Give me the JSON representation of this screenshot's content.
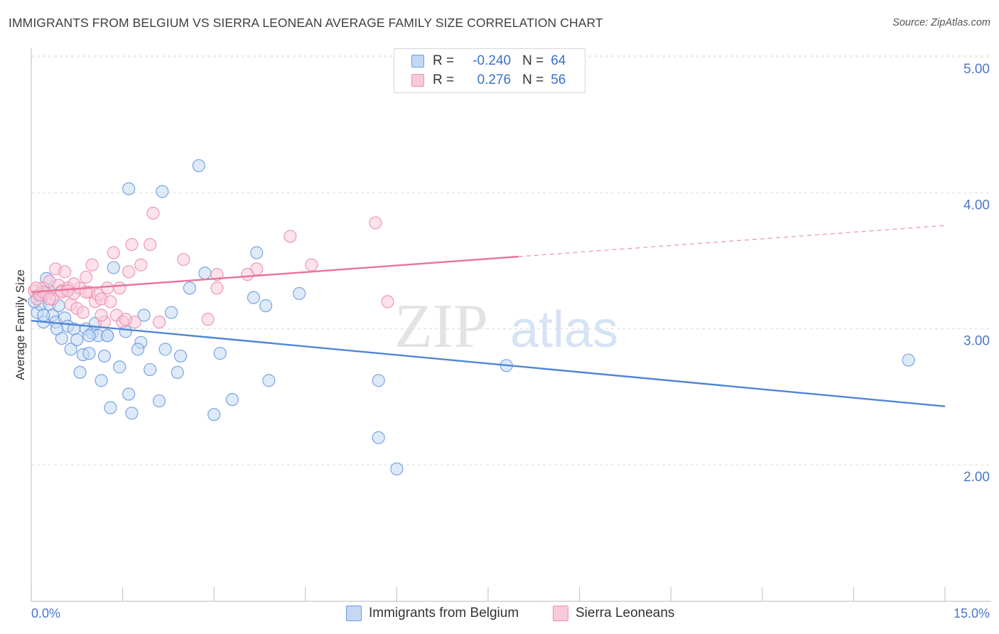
{
  "title": "IMMIGRANTS FROM BELGIUM VS SIERRA LEONEAN AVERAGE FAMILY SIZE CORRELATION CHART",
  "source": "Source: ZipAtlas.com",
  "watermark": {
    "zip": "ZIP",
    "atlas": "atlas"
  },
  "legend": {
    "rows": [
      {
        "r_label": "R =",
        "r_value": "-0.240",
        "n_label": "N =",
        "n_value": "64"
      },
      {
        "r_label": "R =",
        "r_value": "0.276",
        "n_label": "N =",
        "n_value": "56"
      }
    ]
  },
  "colors": {
    "blue": "#4f86d6",
    "pink": "#e8739b",
    "blue_fill": "#c4d8f3",
    "pink_fill": "#f9cad9"
  },
  "chart_data": {
    "type": "scatter",
    "title": "IMMIGRANTS FROM BELGIUM VS SIERRA LEONEAN AVERAGE FAMILY SIZE CORRELATION CHART",
    "xlabel": "",
    "ylabel": "Average Family Size",
    "xlim": [
      0,
      15
    ],
    "ylim": [
      1.0,
      5.15
    ],
    "x_tick_labels": {
      "min": "0.0%",
      "max": "15.0%"
    },
    "y_ticks": [
      {
        "value": 2.0,
        "label": "2.00"
      },
      {
        "value": 3.0,
        "label": "3.00"
      },
      {
        "value": 4.0,
        "label": "4.00"
      },
      {
        "value": 5.0,
        "label": "5.00"
      }
    ],
    "legend_position": "top-center",
    "grid": true,
    "series": [
      {
        "name": "Immigrants from Belgium",
        "color": "#4f86d6",
        "trend": {
          "x": [
            0,
            15
          ],
          "y": [
            3.06,
            2.43
          ],
          "dashed_from": null
        },
        "points": [
          [
            0.1,
            3.12
          ],
          [
            0.15,
            3.18
          ],
          [
            0.2,
            3.05
          ],
          [
            0.25,
            3.37
          ],
          [
            0.3,
            3.28
          ],
          [
            0.3,
            3.18
          ],
          [
            0.35,
            3.1
          ],
          [
            0.4,
            3.05
          ],
          [
            0.45,
            3.17
          ],
          [
            0.5,
            2.93
          ],
          [
            0.55,
            3.08
          ],
          [
            0.6,
            3.02
          ],
          [
            0.65,
            2.85
          ],
          [
            0.7,
            3.0
          ],
          [
            0.75,
            2.92
          ],
          [
            0.8,
            2.68
          ],
          [
            0.85,
            2.81
          ],
          [
            0.9,
            3.0
          ],
          [
            0.95,
            2.82
          ],
          [
            1.0,
            2.97
          ],
          [
            1.05,
            3.04
          ],
          [
            1.1,
            2.95
          ],
          [
            1.15,
            2.62
          ],
          [
            1.2,
            2.8
          ],
          [
            1.25,
            2.95
          ],
          [
            1.3,
            2.42
          ],
          [
            1.35,
            3.45
          ],
          [
            1.45,
            2.72
          ],
          [
            1.55,
            2.98
          ],
          [
            1.6,
            2.52
          ],
          [
            1.65,
            2.38
          ],
          [
            1.8,
            2.9
          ],
          [
            1.85,
            3.1
          ],
          [
            1.95,
            2.7
          ],
          [
            2.1,
            2.47
          ],
          [
            2.2,
            2.85
          ],
          [
            2.3,
            3.12
          ],
          [
            2.45,
            2.8
          ],
          [
            2.6,
            3.3
          ],
          [
            2.75,
            4.2
          ],
          [
            3.0,
            2.37
          ],
          [
            3.1,
            2.82
          ],
          [
            3.3,
            2.48
          ],
          [
            3.7,
            3.56
          ],
          [
            3.85,
            3.17
          ],
          [
            3.9,
            2.62
          ],
          [
            4.4,
            3.26
          ],
          [
            5.7,
            2.62
          ],
          [
            5.7,
            2.2
          ],
          [
            6.0,
            1.97
          ],
          [
            7.8,
            2.73
          ],
          [
            14.4,
            2.77
          ],
          [
            1.6,
            4.03
          ],
          [
            2.15,
            4.01
          ],
          [
            2.85,
            3.41
          ],
          [
            3.65,
            3.23
          ],
          [
            0.05,
            3.2
          ],
          [
            0.12,
            3.25
          ],
          [
            0.2,
            3.1
          ],
          [
            0.42,
            3.0
          ],
          [
            0.95,
            2.95
          ],
          [
            1.75,
            2.85
          ],
          [
            2.4,
            2.68
          ],
          [
            1.25,
            2.95
          ]
        ]
      },
      {
        "name": "Sierra Leoneans",
        "color": "#e8739b",
        "trend": {
          "x": [
            0,
            15
          ],
          "y": [
            3.27,
            3.76
          ],
          "dashed_from": 8.0
        },
        "points": [
          [
            0.05,
            3.28
          ],
          [
            0.1,
            3.22
          ],
          [
            0.15,
            3.25
          ],
          [
            0.2,
            3.3
          ],
          [
            0.25,
            3.26
          ],
          [
            0.3,
            3.35
          ],
          [
            0.35,
            3.22
          ],
          [
            0.4,
            3.44
          ],
          [
            0.45,
            3.32
          ],
          [
            0.5,
            3.28
          ],
          [
            0.55,
            3.42
          ],
          [
            0.6,
            3.3
          ],
          [
            0.65,
            3.18
          ],
          [
            0.7,
            3.26
          ],
          [
            0.75,
            3.15
          ],
          [
            0.8,
            3.3
          ],
          [
            0.85,
            3.12
          ],
          [
            0.9,
            3.38
          ],
          [
            0.95,
            3.27
          ],
          [
            1.0,
            3.47
          ],
          [
            1.05,
            3.2
          ],
          [
            1.1,
            3.25
          ],
          [
            1.15,
            3.22
          ],
          [
            1.2,
            3.05
          ],
          [
            1.25,
            3.3
          ],
          [
            1.3,
            3.2
          ],
          [
            1.35,
            3.56
          ],
          [
            1.4,
            3.1
          ],
          [
            1.45,
            3.3
          ],
          [
            1.5,
            3.05
          ],
          [
            1.6,
            3.42
          ],
          [
            1.65,
            3.62
          ],
          [
            1.7,
            3.05
          ],
          [
            1.8,
            3.47
          ],
          [
            1.95,
            3.62
          ],
          [
            2.0,
            3.85
          ],
          [
            2.1,
            3.05
          ],
          [
            2.5,
            3.51
          ],
          [
            2.9,
            3.07
          ],
          [
            3.05,
            3.3
          ],
          [
            3.05,
            3.4
          ],
          [
            3.7,
            3.44
          ],
          [
            4.25,
            3.68
          ],
          [
            4.6,
            3.47
          ],
          [
            5.65,
            3.78
          ],
          [
            5.85,
            3.2
          ],
          [
            0.2,
            3.27
          ],
          [
            0.3,
            3.22
          ],
          [
            0.5,
            3.27
          ],
          [
            0.7,
            3.33
          ],
          [
            0.9,
            3.27
          ],
          [
            1.15,
            3.1
          ],
          [
            1.55,
            3.07
          ],
          [
            3.55,
            3.4
          ],
          [
            0.08,
            3.3
          ],
          [
            0.6,
            3.28
          ]
        ]
      }
    ]
  },
  "bottom_legend": [
    {
      "label": "Immigrants from Belgium"
    },
    {
      "label": "Sierra Leoneans"
    }
  ]
}
